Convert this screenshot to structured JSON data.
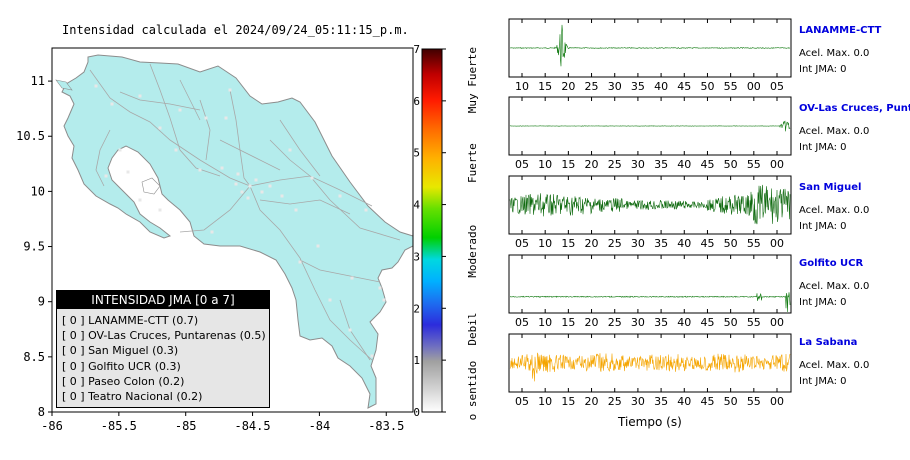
{
  "map": {
    "title": "Intensidad calculada el 2024/09/24_05:11:15_p.m.",
    "x_ticks": [
      "-86",
      "-85.5",
      "-85",
      "-84.5",
      "-84",
      "-83.5",
      "-83"
    ],
    "y_ticks": [
      "11",
      "10.5",
      "10",
      "9.5",
      "9",
      "8.5",
      "8"
    ],
    "x_range": [
      -86,
      -83.3
    ],
    "y_range": [
      8,
      11.3
    ],
    "land_color": "#b4ecec"
  },
  "legend": {
    "title": "INTENSIDAD JMA [0 a 7]",
    "items": [
      "[ 0 ] LANAMME-CTT (0.7)",
      "[ 0 ] OV-Las Cruces, Puntarenas (0.5)",
      "[ 0 ] San Miguel (0.3)",
      "[ 0 ] Golfito UCR (0.3)",
      "[ 0 ] Paseo Colon (0.2)",
      "[ 0 ] Teatro Nacional (0.2)"
    ]
  },
  "colorbar": {
    "ticks": [
      "7",
      "6",
      "5",
      "4",
      "3",
      "2",
      "1",
      "0"
    ],
    "range": [
      0,
      7
    ],
    "categories": [
      "Muy Fuerte",
      "Fuerte",
      "Moderado",
      "Debil",
      "No sentido"
    ]
  },
  "traces": [
    {
      "name": "LANAMME-CTT",
      "accel": "Acel. Max. 0.0",
      "jma": "Int JMA: 0",
      "color": "#117a11",
      "ticks": [
        "10",
        "15",
        "20",
        "25",
        "30",
        "35",
        "40",
        "45",
        "50",
        "55",
        "00",
        "05"
      ]
    },
    {
      "name": "OV-Las Cruces, Puntar",
      "accel": "Acel. Max. 0.0",
      "jma": "Int JMA: 0",
      "color": "#117a11",
      "ticks": [
        "05",
        "10",
        "15",
        "20",
        "25",
        "30",
        "35",
        "40",
        "45",
        "50",
        "55",
        "00"
      ]
    },
    {
      "name": "San Miguel",
      "accel": "Acel. Max. 0.0",
      "jma": "Int JMA: 0",
      "color": "#0f6a0f",
      "ticks": [
        "05",
        "10",
        "15",
        "20",
        "25",
        "30",
        "35",
        "40",
        "45",
        "50",
        "55",
        "00"
      ]
    },
    {
      "name": "Golfito UCR",
      "accel": "Acel. Max. 0.0",
      "jma": "Int JMA: 0",
      "color": "#117a11",
      "ticks": [
        "05",
        "10",
        "15",
        "20",
        "25",
        "30",
        "35",
        "40",
        "45",
        "50",
        "55",
        "00"
      ]
    },
    {
      "name": "La Sabana",
      "accel": "Acel. Max. 0.0",
      "jma": "Int JMA: 0",
      "color": "#f5a500",
      "ticks": [
        "05",
        "10",
        "15",
        "20",
        "25",
        "30",
        "35",
        "40",
        "45",
        "50",
        "55",
        "00"
      ]
    }
  ],
  "x_axis_label": "Tiempo (s)",
  "chart_data": [
    {
      "type": "map",
      "title": "Intensidad calculada el 2024/09/24_05:11:15_p.m.",
      "xlim": [
        -86,
        -83.3
      ],
      "ylim": [
        8,
        11.3
      ],
      "x_ticks": [
        -86,
        -85.5,
        -85,
        -84.5,
        -84,
        -83.5,
        -83
      ],
      "y_ticks": [
        8,
        8.5,
        9,
        9.5,
        10,
        10.5,
        11
      ],
      "legend_title": "INTENSIDAD JMA [0 a 7]",
      "stations": [
        {
          "name": "LANAMME-CTT",
          "intensity": 0,
          "value": 0.7
        },
        {
          "name": "OV-Las Cruces, Puntarenas",
          "intensity": 0,
          "value": 0.5
        },
        {
          "name": "San Miguel",
          "intensity": 0,
          "value": 0.3
        },
        {
          "name": "Golfito UCR",
          "intensity": 0,
          "value": 0.3
        },
        {
          "name": "Paseo Colon",
          "intensity": 0,
          "value": 0.2
        },
        {
          "name": "Teatro Nacional",
          "intensity": 0,
          "value": 0.2
        }
      ],
      "colorbar": {
        "range": [
          0,
          7
        ],
        "ticks": [
          0,
          1,
          2,
          3,
          4,
          5,
          6,
          7
        ],
        "labels": [
          "No sentido",
          "Debil",
          "Moderado",
          "Fuerte",
          "Muy Fuerte"
        ]
      }
    },
    {
      "type": "line",
      "xlabel": "Tiempo (s)",
      "series": [
        {
          "name": "LANAMME-CTT",
          "acel_max": 0.0,
          "int_jma": 0
        },
        {
          "name": "OV-Las Cruces, Puntar",
          "acel_max": 0.0,
          "int_jma": 0
        },
        {
          "name": "San Miguel",
          "acel_max": 0.0,
          "int_jma": 0
        },
        {
          "name": "Golfito UCR",
          "acel_max": 0.0,
          "int_jma": 0
        },
        {
          "name": "La Sabana",
          "acel_max": 0.0,
          "int_jma": 0
        }
      ]
    }
  ]
}
